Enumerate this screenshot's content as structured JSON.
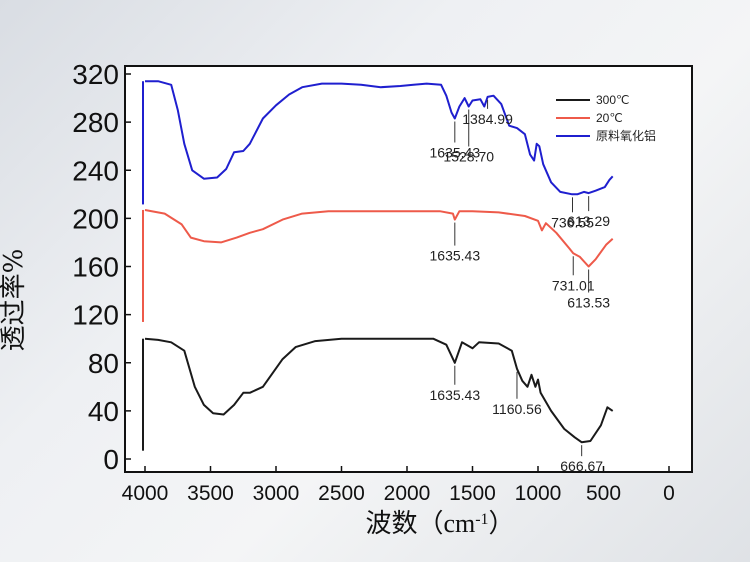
{
  "chart_data": {
    "type": "line",
    "xlabel": "波数（cm",
    "xlabel_sup": "-1",
    "xlabel_close": "）",
    "ylabel": "透过率%",
    "xlim": [
      4000,
      0
    ],
    "ylim": [
      0,
      320
    ],
    "x_ticks": [
      4000,
      3500,
      3000,
      2500,
      2000,
      1500,
      1000,
      500,
      0
    ],
    "y_ticks": [
      0,
      40,
      80,
      120,
      160,
      200,
      240,
      280,
      320
    ],
    "grid": false,
    "legend_position": "top-right",
    "series": [
      {
        "name": "300℃",
        "color": "#1a1a1a",
        "points": [
          [
            4000,
            100
          ],
          [
            3900,
            99
          ],
          [
            3800,
            97
          ],
          [
            3700,
            90
          ],
          [
            3620,
            60
          ],
          [
            3550,
            45
          ],
          [
            3480,
            38
          ],
          [
            3400,
            37
          ],
          [
            3320,
            45
          ],
          [
            3250,
            55
          ],
          [
            3200,
            55
          ],
          [
            3100,
            60
          ],
          [
            2950,
            83
          ],
          [
            2850,
            93
          ],
          [
            2700,
            98
          ],
          [
            2500,
            100
          ],
          [
            2200,
            100
          ],
          [
            1900,
            100
          ],
          [
            1800,
            100
          ],
          [
            1700,
            95
          ],
          [
            1635,
            80
          ],
          [
            1580,
            97
          ],
          [
            1500,
            92
          ],
          [
            1450,
            97
          ],
          [
            1300,
            96
          ],
          [
            1200,
            90
          ],
          [
            1160,
            75
          ],
          [
            1120,
            65
          ],
          [
            1080,
            60
          ],
          [
            1050,
            70
          ],
          [
            1020,
            60
          ],
          [
            1000,
            66
          ],
          [
            980,
            55
          ],
          [
            900,
            40
          ],
          [
            800,
            25
          ],
          [
            720,
            18
          ],
          [
            667,
            14
          ],
          [
            600,
            15
          ],
          [
            520,
            28
          ],
          [
            470,
            43
          ],
          [
            430,
            40
          ]
        ]
      },
      {
        "name": "20℃",
        "color": "#ee5a4a",
        "points": [
          [
            4000,
            207
          ],
          [
            3850,
            204
          ],
          [
            3720,
            195
          ],
          [
            3650,
            184
          ],
          [
            3550,
            181
          ],
          [
            3420,
            180
          ],
          [
            3300,
            184
          ],
          [
            3200,
            188
          ],
          [
            3100,
            191
          ],
          [
            2950,
            199
          ],
          [
            2800,
            204
          ],
          [
            2600,
            206
          ],
          [
            2300,
            206
          ],
          [
            2000,
            206
          ],
          [
            1750,
            206
          ],
          [
            1650,
            204
          ],
          [
            1635,
            199
          ],
          [
            1600,
            206
          ],
          [
            1500,
            206
          ],
          [
            1300,
            205
          ],
          [
            1100,
            202
          ],
          [
            1000,
            198
          ],
          [
            970,
            190
          ],
          [
            940,
            196
          ],
          [
            860,
            188
          ],
          [
            760,
            175
          ],
          [
            731,
            171
          ],
          [
            680,
            168
          ],
          [
            614,
            160
          ],
          [
            560,
            166
          ],
          [
            480,
            178
          ],
          [
            430,
            183
          ]
        ]
      },
      {
        "name": "原料氧化铝",
        "color": "#1f1fcf",
        "points": [
          [
            4000,
            314
          ],
          [
            3900,
            314
          ],
          [
            3800,
            311
          ],
          [
            3750,
            290
          ],
          [
            3700,
            262
          ],
          [
            3640,
            240
          ],
          [
            3550,
            233
          ],
          [
            3450,
            234
          ],
          [
            3380,
            241
          ],
          [
            3320,
            255
          ],
          [
            3250,
            256
          ],
          [
            3200,
            262
          ],
          [
            3100,
            283
          ],
          [
            3000,
            294
          ],
          [
            2900,
            303
          ],
          [
            2800,
            309
          ],
          [
            2650,
            312
          ],
          [
            2500,
            312
          ],
          [
            2350,
            311
          ],
          [
            2200,
            309
          ],
          [
            2050,
            310
          ],
          [
            1950,
            311
          ],
          [
            1850,
            312
          ],
          [
            1740,
            311
          ],
          [
            1700,
            302
          ],
          [
            1660,
            288
          ],
          [
            1635,
            283
          ],
          [
            1600,
            293
          ],
          [
            1560,
            300
          ],
          [
            1529,
            293
          ],
          [
            1500,
            298
          ],
          [
            1440,
            299
          ],
          [
            1410,
            293
          ],
          [
            1385,
            301
          ],
          [
            1340,
            302
          ],
          [
            1280,
            295
          ],
          [
            1220,
            277
          ],
          [
            1160,
            275
          ],
          [
            1100,
            270
          ],
          [
            1060,
            253
          ],
          [
            1030,
            248
          ],
          [
            1010,
            262
          ],
          [
            990,
            260
          ],
          [
            960,
            245
          ],
          [
            900,
            230
          ],
          [
            830,
            222
          ],
          [
            740,
            220
          ],
          [
            700,
            220
          ],
          [
            650,
            222
          ],
          [
            613,
            221
          ],
          [
            560,
            223
          ],
          [
            490,
            226
          ],
          [
            455,
            232
          ],
          [
            430,
            235
          ]
        ]
      }
    ],
    "annotations": [
      {
        "label": "1635.43",
        "x": 1635,
        "y": 283,
        "dy": 24,
        "series": 2
      },
      {
        "label": "1528.70",
        "x": 1528.7,
        "y": 293,
        "dy": 40,
        "series": 2
      },
      {
        "label": "1384.99",
        "x": 1385,
        "y": 301,
        "dy": 12,
        "series": 2
      },
      {
        "label": "736.55",
        "x": 736.55,
        "y": 220,
        "dy": 18,
        "series": 2
      },
      {
        "label": "613.29",
        "x": 613.29,
        "y": 221,
        "dy": 18,
        "series": 2
      },
      {
        "label": "1635.43",
        "x": 1635,
        "y": 199,
        "dy": 26,
        "series": 1
      },
      {
        "label": "731.01",
        "x": 731.01,
        "y": 171,
        "dy": 22,
        "series": 1
      },
      {
        "label": "613.53",
        "x": 613.53,
        "y": 160,
        "dy": 26,
        "series": 1
      },
      {
        "label": "1635.43",
        "x": 1635,
        "y": 80,
        "dy": 22,
        "series": 0
      },
      {
        "label": "1160.56",
        "x": 1160.56,
        "y": 75,
        "dy": 30,
        "series": 0
      },
      {
        "label": "666.67",
        "x": 666.67,
        "y": 14,
        "dy": 14,
        "series": 0
      }
    ]
  },
  "colors": {
    "frame": "#111111",
    "plot_background": "#ffffff"
  }
}
